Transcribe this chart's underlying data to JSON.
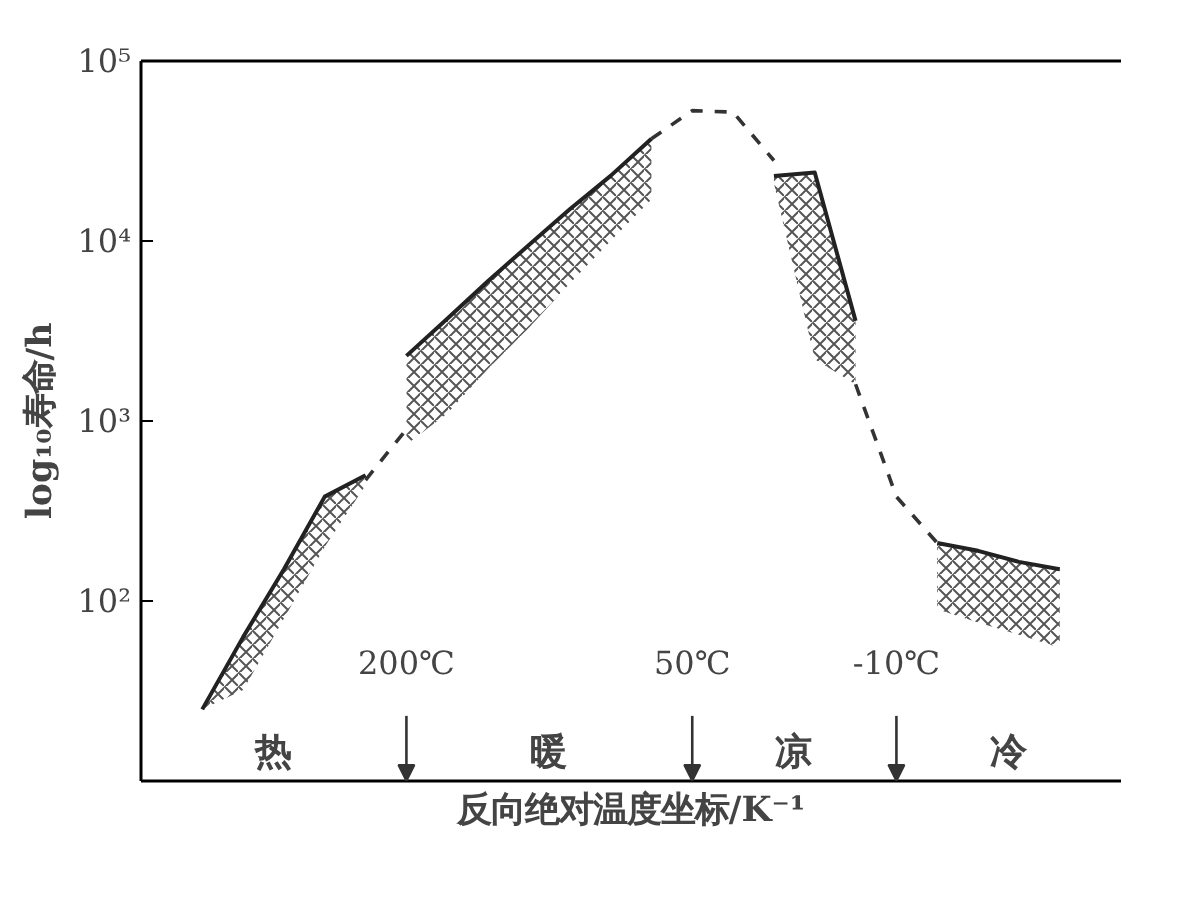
{
  "chart_data": {
    "type": "line",
    "xlabel": "反向绝对温度坐标/K⁻¹",
    "ylabel": "log₁₀寿命/h",
    "log": "y",
    "grid": false,
    "ylim": [
      10,
      100000
    ],
    "categories": [
      null,
      null,
      null,
      null,
      null,
      null,
      "200℃",
      null,
      null,
      null,
      null,
      null,
      null,
      "50℃",
      null,
      null,
      null,
      null,
      "-10℃",
      null,
      null,
      null,
      null,
      null
    ],
    "yticks": [
      {
        "value": 100,
        "label": "10²"
      },
      {
        "value": 1000,
        "label": "10³"
      },
      {
        "value": 10000,
        "label": "10⁴"
      },
      {
        "value": 100000,
        "label": "10⁵"
      }
    ],
    "series": [
      {
        "color": "#222222",
        "values": [
          null,
          25,
          63,
          150,
          380,
          500,
          null,
          null,
          null,
          null,
          null,
          null,
          null,
          null,
          null,
          null,
          null,
          null,
          null,
          null,
          null,
          null,
          null,
          null
        ],
        "lower": [
          null,
          25,
          32,
          80,
          200,
          440,
          null,
          null,
          null,
          null,
          null,
          null,
          null,
          null,
          null,
          null,
          null,
          null,
          null,
          null,
          null,
          null,
          null,
          null
        ],
        "upper": [
          null,
          25,
          63,
          150,
          380,
          500,
          null,
          null,
          null,
          null,
          null,
          null,
          null,
          null,
          null,
          null,
          null,
          null,
          null,
          null,
          null,
          null,
          null,
          null
        ]
      },
      {
        "color": "#222222",
        "values": [
          null,
          null,
          null,
          null,
          null,
          null,
          2300,
          3700,
          6000,
          9500,
          15000,
          23000,
          37000,
          null,
          null,
          null,
          null,
          null,
          null,
          null,
          null,
          null,
          null,
          null
        ],
        "lower": [
          null,
          null,
          null,
          null,
          null,
          null,
          740,
          1100,
          1950,
          3300,
          5800,
          10000,
          17000,
          null,
          null,
          null,
          null,
          null,
          null,
          null,
          null,
          null,
          null,
          null
        ],
        "upper": [
          null,
          null,
          null,
          null,
          null,
          null,
          2300,
          3700,
          6000,
          9500,
          15000,
          23000,
          37000,
          null,
          null,
          null,
          null,
          null,
          null,
          null,
          null,
          null,
          null,
          null
        ]
      },
      {
        "color": "#222222",
        "values": [
          null,
          null,
          null,
          null,
          null,
          null,
          null,
          null,
          null,
          null,
          null,
          null,
          null,
          null,
          null,
          23000,
          24000,
          3600,
          null,
          null,
          null,
          null,
          null,
          null
        ],
        "lower": [
          null,
          null,
          null,
          null,
          null,
          null,
          null,
          null,
          null,
          null,
          null,
          null,
          null,
          null,
          null,
          21000,
          2200,
          1600,
          null,
          null,
          null,
          null,
          null,
          null
        ],
        "upper": [
          null,
          null,
          null,
          null,
          null,
          null,
          null,
          null,
          null,
          null,
          null,
          null,
          null,
          null,
          null,
          23000,
          24000,
          3600,
          null,
          null,
          null,
          null,
          null,
          null
        ]
      },
      {
        "color": "#222222",
        "values": [
          null,
          null,
          null,
          null,
          null,
          null,
          null,
          null,
          null,
          null,
          null,
          null,
          null,
          null,
          null,
          null,
          null,
          null,
          null,
          210,
          190,
          165,
          150,
          null
        ],
        "lower": [
          null,
          null,
          null,
          null,
          null,
          null,
          null,
          null,
          null,
          null,
          null,
          null,
          null,
          null,
          null,
          null,
          null,
          null,
          null,
          90,
          76,
          65,
          55,
          null
        ],
        "upper": [
          null,
          null,
          null,
          null,
          null,
          null,
          null,
          null,
          null,
          null,
          null,
          null,
          null,
          null,
          null,
          null,
          null,
          null,
          null,
          210,
          190,
          165,
          150,
          null
        ]
      },
      {
        "color": "#333333",
        "line_style": "dashed",
        "values": [
          null,
          null,
          null,
          null,
          null,
          470,
          900,
          null,
          null,
          null,
          null,
          null,
          null,
          null,
          null,
          null,
          null,
          null,
          null,
          null,
          null,
          null,
          null,
          null
        ]
      },
      {
        "color": "#333333",
        "line_style": "dashed",
        "values": [
          null,
          null,
          null,
          null,
          null,
          null,
          null,
          null,
          null,
          null,
          null,
          null,
          37000,
          53000,
          52000,
          28000,
          null,
          null,
          null,
          null,
          null,
          null,
          null,
          null
        ]
      },
      {
        "color": "#333333",
        "line_style": "dashed",
        "values": [
          null,
          null,
          null,
          null,
          null,
          null,
          null,
          null,
          null,
          null,
          null,
          null,
          null,
          null,
          null,
          null,
          null,
          1600,
          380,
          210,
          null,
          null,
          null,
          null
        ]
      }
    ],
    "annotations": [
      "热",
      "暖",
      "凉",
      "冷"
    ]
  }
}
